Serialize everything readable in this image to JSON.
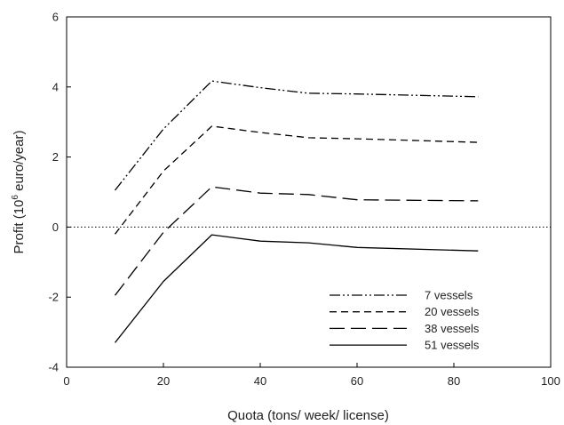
{
  "chart_data": {
    "type": "line",
    "xlabel": "Quota (tons/ week/ license)",
    "ylabel": {
      "prefix": "Profit (10",
      "superscript": "6",
      "suffix": " euro/year)"
    },
    "xlim": [
      0,
      100
    ],
    "ylim": [
      -4,
      6
    ],
    "xticks": [
      "0",
      "20",
      "40",
      "60",
      "80",
      "100"
    ],
    "yticks": [
      "-4",
      "-2",
      "0",
      "2",
      "4",
      "6"
    ],
    "grid": false,
    "reference_line": {
      "y": 0,
      "style": "dotted"
    },
    "legend_position": "lower-right",
    "x": [
      10,
      20,
      30,
      40,
      50,
      60,
      85
    ],
    "series": [
      {
        "name": "7 vessels",
        "style": "dash-dot-dot",
        "values": [
          1.05,
          2.8,
          4.17,
          3.98,
          3.82,
          3.8,
          3.72
        ]
      },
      {
        "name": "20 vessels",
        "style": "short-dash",
        "values": [
          -0.2,
          1.6,
          2.88,
          2.7,
          2.55,
          2.52,
          2.42
        ]
      },
      {
        "name": "38 vessels",
        "style": "long-dash",
        "values": [
          -1.95,
          -0.15,
          1.15,
          0.97,
          0.93,
          0.78,
          0.75
        ]
      },
      {
        "name": "51 vessels",
        "style": "solid",
        "values": [
          -3.3,
          -1.55,
          -0.22,
          -0.4,
          -0.45,
          -0.58,
          -0.68
        ]
      }
    ]
  }
}
